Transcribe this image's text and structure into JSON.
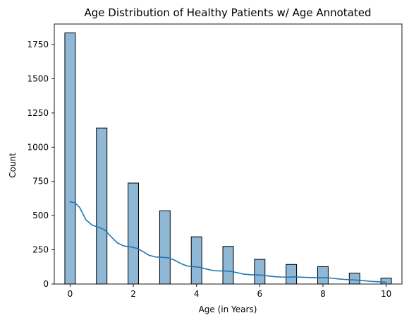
{
  "chart_data": {
    "type": "bar",
    "title": "Age Distribution of Healthy Patients w/ Age Annotated",
    "xlabel": "Age (in Years)",
    "ylabel": "Count",
    "xlim": [
      -0.5,
      10.5
    ],
    "ylim": [
      0,
      1900
    ],
    "x_ticks": [
      0,
      2,
      4,
      6,
      8,
      10
    ],
    "y_ticks": [
      0,
      250,
      500,
      750,
      1000,
      1250,
      1500,
      1750
    ],
    "bin_width": 0.333,
    "bins": [
      {
        "age": 0,
        "count": 1835
      },
      {
        "age": 1,
        "count": 1140
      },
      {
        "age": 2,
        "count": 738
      },
      {
        "age": 3,
        "count": 535
      },
      {
        "age": 4,
        "count": 345
      },
      {
        "age": 5,
        "count": 275
      },
      {
        "age": 6,
        "count": 180
      },
      {
        "age": 7,
        "count": 143
      },
      {
        "age": 8,
        "count": 127
      },
      {
        "age": 9,
        "count": 80
      },
      {
        "age": 10,
        "count": 43
      }
    ],
    "kde_curve": [
      [
        0.0,
        600
      ],
      [
        0.15,
        595
      ],
      [
        0.3,
        560
      ],
      [
        0.5,
        470
      ],
      [
        0.7,
        430
      ],
      [
        0.9,
        415
      ],
      [
        1.1,
        395
      ],
      [
        1.3,
        345
      ],
      [
        1.5,
        300
      ],
      [
        1.7,
        278
      ],
      [
        1.9,
        272
      ],
      [
        2.1,
        262
      ],
      [
        2.3,
        238
      ],
      [
        2.5,
        210
      ],
      [
        2.7,
        198
      ],
      [
        2.9,
        195
      ],
      [
        3.1,
        192
      ],
      [
        3.3,
        175
      ],
      [
        3.5,
        150
      ],
      [
        3.7,
        132
      ],
      [
        3.9,
        127
      ],
      [
        4.1,
        122
      ],
      [
        4.3,
        110
      ],
      [
        4.5,
        100
      ],
      [
        4.7,
        96
      ],
      [
        4.9,
        95
      ],
      [
        5.1,
        92
      ],
      [
        5.3,
        82
      ],
      [
        5.5,
        72
      ],
      [
        5.7,
        68
      ],
      [
        5.9,
        67
      ],
      [
        6.1,
        64
      ],
      [
        6.3,
        58
      ],
      [
        6.5,
        53
      ],
      [
        6.7,
        51
      ],
      [
        6.9,
        50
      ],
      [
        7.1,
        52
      ],
      [
        7.3,
        50
      ],
      [
        7.5,
        48
      ],
      [
        7.7,
        47
      ],
      [
        7.9,
        47
      ],
      [
        8.1,
        46
      ],
      [
        8.3,
        42
      ],
      [
        8.5,
        37
      ],
      [
        8.7,
        33
      ],
      [
        8.9,
        31
      ],
      [
        9.1,
        28
      ],
      [
        9.3,
        24
      ],
      [
        9.5,
        20
      ],
      [
        9.7,
        17
      ],
      [
        10.0,
        13
      ]
    ],
    "grid": false,
    "colors": {
      "bar_fill": "#8fb8d7",
      "bar_edge": "#000000",
      "kde_line": "#1f77b4"
    }
  }
}
